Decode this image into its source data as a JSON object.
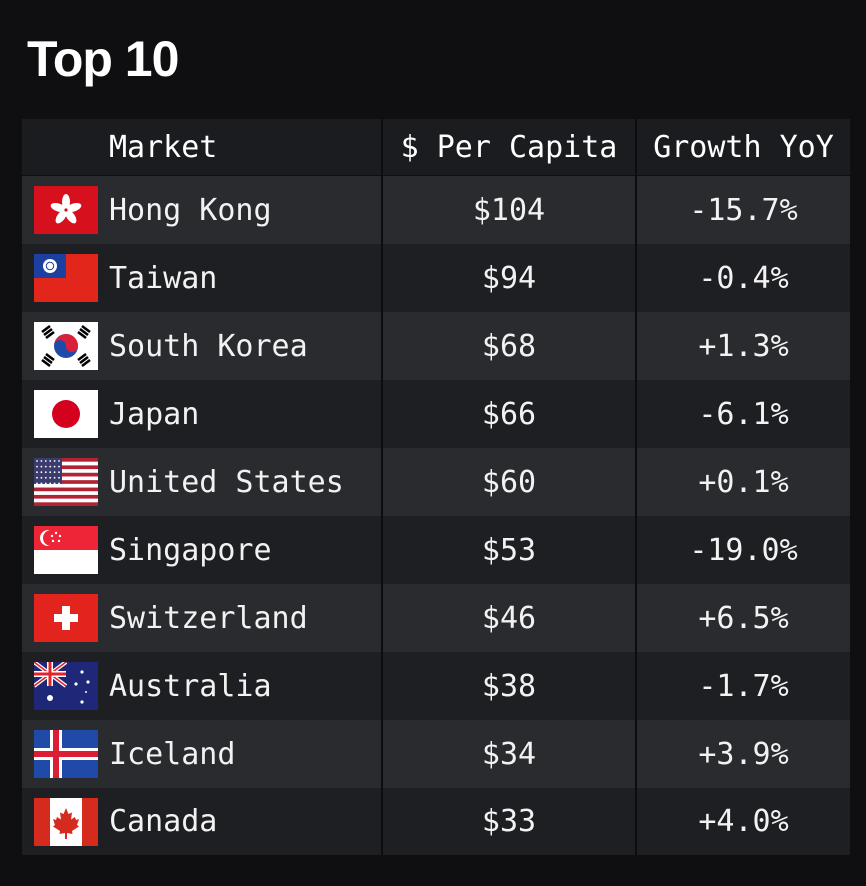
{
  "title": "Top 10",
  "chart_data": {
    "type": "table",
    "title": "Top 10",
    "columns": [
      "",
      "Market",
      "$ Per Capita",
      "Growth YoY"
    ],
    "rows": [
      {
        "flag": "hong-kong-flag",
        "market": "Hong Kong",
        "per_capita": "$104",
        "growth": "-15.7%"
      },
      {
        "flag": "taiwan-flag",
        "market": "Taiwan",
        "per_capita": "$94",
        "growth": "-0.4%"
      },
      {
        "flag": "south-korea-flag",
        "market": "South Korea",
        "per_capita": "$68",
        "growth": "+1.3%"
      },
      {
        "flag": "japan-flag",
        "market": "Japan",
        "per_capita": "$66",
        "growth": "-6.1%"
      },
      {
        "flag": "united-states-flag",
        "market": "United States",
        "per_capita": "$60",
        "growth": "+0.1%"
      },
      {
        "flag": "singapore-flag",
        "market": "Singapore",
        "per_capita": "$53",
        "growth": "-19.0%"
      },
      {
        "flag": "switzerland-flag",
        "market": "Switzerland",
        "per_capita": "$46",
        "growth": "+6.5%"
      },
      {
        "flag": "australia-flag",
        "market": "Australia",
        "per_capita": "$38",
        "growth": "-1.7%"
      },
      {
        "flag": "iceland-flag",
        "market": "Iceland",
        "per_capita": "$34",
        "growth": "+3.9%"
      },
      {
        "flag": "canada-flag",
        "market": "Canada",
        "per_capita": "$33",
        "growth": "+4.0%"
      }
    ]
  },
  "colors": {
    "background": "#0f0f11",
    "header_row": "#1b1c1f",
    "row_light": "#2a2b2f",
    "row_dark": "#1e1f22",
    "text": "#f2f2f2"
  }
}
